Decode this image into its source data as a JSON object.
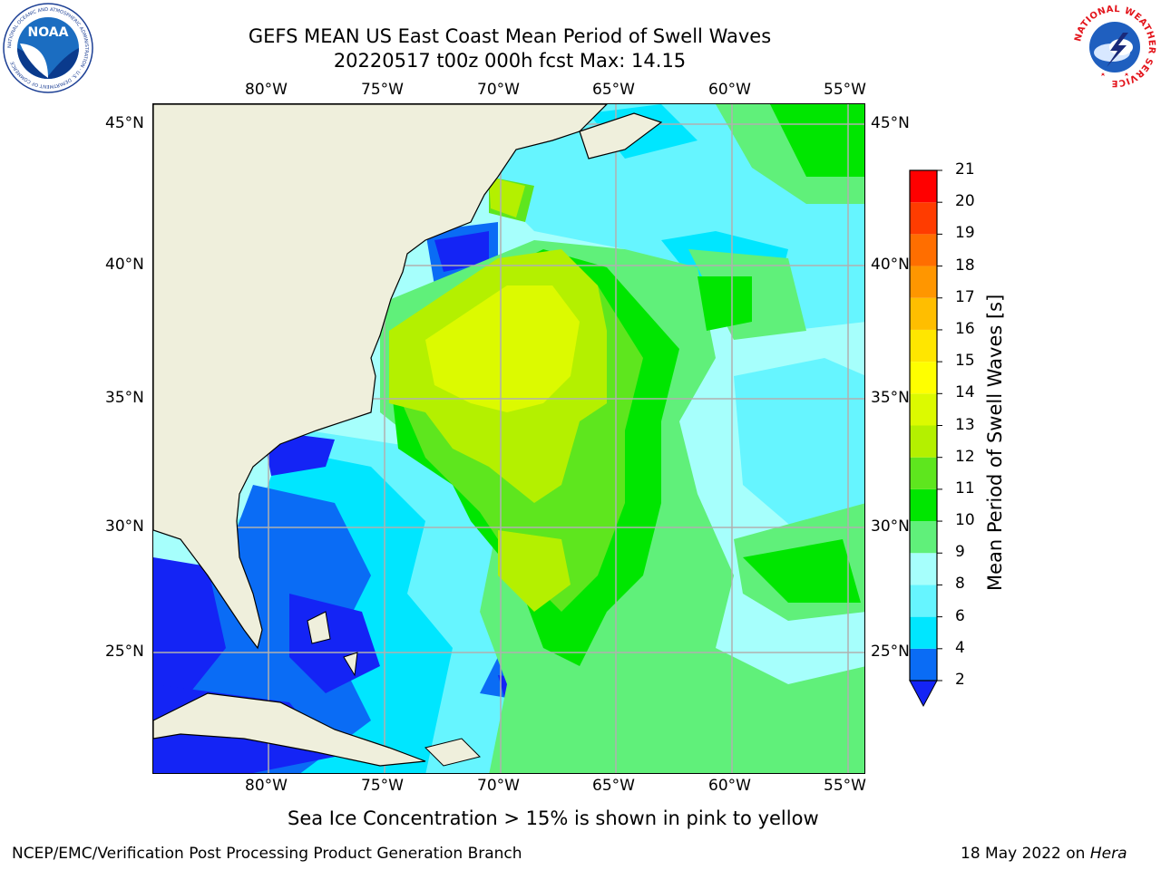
{
  "header": {
    "title_line1": "GEFS MEAN US East Coast Mean Period of Swell Waves",
    "title_line2": "20220517 t00z 000h fcst   Max: 14.15"
  },
  "logos": {
    "left": {
      "name": "NOAA",
      "ring_text": "NATIONAL OCEANIC AND ATMOSPHERIC ADMINISTRATION · U.S. DEPARTMENT OF COMMERCE"
    },
    "right": {
      "ring_text": "NATIONAL WEATHER SERVICE"
    }
  },
  "map": {
    "lon_labels": [
      "80°W",
      "75°W",
      "70°W",
      "65°W",
      "60°W",
      "55°W"
    ],
    "lat_labels": [
      "45°N",
      "40°N",
      "35°N",
      "30°N",
      "25°N"
    ],
    "lon_range": [
      -85,
      -54.5
    ],
    "lat_range": [
      20.5,
      46
    ]
  },
  "colorbar": {
    "label": "Mean Period of Swell Waves [s]",
    "ticks": [
      "2",
      "4",
      "6",
      "8",
      "9",
      "10",
      "11",
      "12",
      "13",
      "14",
      "15",
      "16",
      "17",
      "18",
      "19",
      "20",
      "21"
    ],
    "colors": [
      "#0a6cf5",
      "#00b4ff",
      "#00e6ff",
      "#66f5ff",
      "#a6fffc",
      "#60f07a",
      "#00e600",
      "#5ee61e",
      "#b4f000",
      "#dcfa00",
      "#ffff00",
      "#ffe600",
      "#ffbe00",
      "#ff9600",
      "#ff6e00",
      "#ff3c00",
      "#ff0000"
    ],
    "under_color": "#1424f5"
  },
  "caption": "Sea Ice Concentration > 15% is shown in pink to yellow",
  "footer": {
    "left": "NCEP/EMC/Verification Post Processing Product Generation Branch",
    "right_date": "18 May 2022 on",
    "right_host": "Hera"
  },
  "colors": {
    "land": "#efefdc",
    "ocean_base": "#a6fffc",
    "grid": "#b0b0b0"
  }
}
